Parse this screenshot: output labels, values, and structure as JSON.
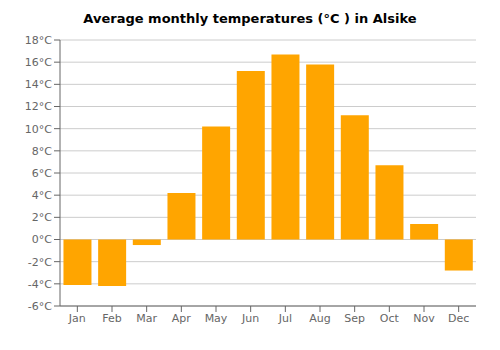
{
  "chart_data": {
    "type": "bar",
    "title": "Average monthly temperatures (°C ) in Alsike",
    "categories": [
      "Jan",
      "Feb",
      "Mar",
      "Apr",
      "May",
      "Jun",
      "Jul",
      "Aug",
      "Sep",
      "Oct",
      "Nov",
      "Dec"
    ],
    "values": [
      -4.1,
      -4.2,
      -0.5,
      4.2,
      10.2,
      15.2,
      16.7,
      15.8,
      11.2,
      6.7,
      1.4,
      -2.8
    ],
    "color": "#FFA500",
    "ylim": [
      -6,
      18
    ],
    "yticks": [
      {
        "value": -6,
        "label": "-6°C"
      },
      {
        "value": -4,
        "label": "-4°C"
      },
      {
        "value": -2,
        "label": "-2°C"
      },
      {
        "value": 0,
        "label": "0°C"
      },
      {
        "value": 2,
        "label": "2°C"
      },
      {
        "value": 4,
        "label": "4°C"
      },
      {
        "value": 6,
        "label": "6°C"
      },
      {
        "value": 8,
        "label": "8°C"
      },
      {
        "value": 10,
        "label": "10°C"
      },
      {
        "value": 12,
        "label": "12°C"
      },
      {
        "value": 14,
        "label": "14°C"
      },
      {
        "value": 16,
        "label": "16°C"
      },
      {
        "value": 18,
        "label": "18°C"
      }
    ],
    "grid": true
  }
}
